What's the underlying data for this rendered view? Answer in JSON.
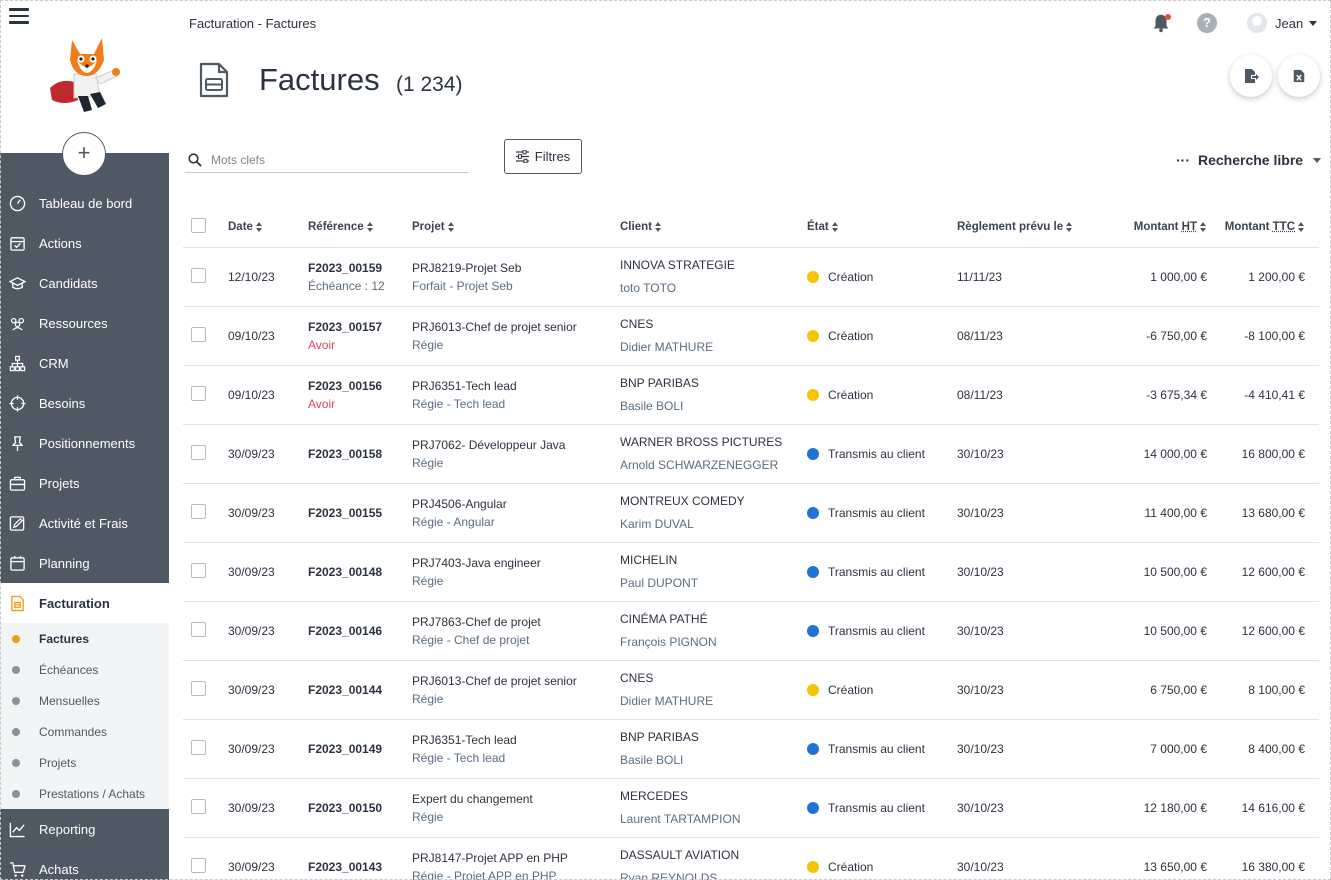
{
  "sidebar": {
    "add_label": "+",
    "nav": [
      {
        "label": "Tableau de bord",
        "icon": "gauge-icon"
      },
      {
        "label": "Actions",
        "icon": "calendar-check-icon"
      },
      {
        "label": "Candidats",
        "icon": "graduation-cap-icon"
      },
      {
        "label": "Ressources",
        "icon": "people-icon"
      },
      {
        "label": "CRM",
        "icon": "sitemap-icon"
      },
      {
        "label": "Besoins",
        "icon": "crosshair-icon"
      },
      {
        "label": "Positionnements",
        "icon": "pin-icon"
      },
      {
        "label": "Projets",
        "icon": "briefcase-icon"
      },
      {
        "label": "Activité et Frais",
        "icon": "edit-icon"
      },
      {
        "label": "Planning",
        "icon": "calendar-icon"
      },
      {
        "label": "Facturation",
        "icon": "invoice-icon"
      }
    ],
    "subnav": [
      {
        "label": "Factures"
      },
      {
        "label": "Échéances"
      },
      {
        "label": "Mensuelles"
      },
      {
        "label": "Commandes"
      },
      {
        "label": "Projets"
      },
      {
        "label": "Prestations / Achats"
      }
    ],
    "nav_after": [
      {
        "label": "Reporting",
        "icon": "chart-line-icon"
      },
      {
        "label": "Achats",
        "icon": "cart-icon"
      }
    ]
  },
  "header": {
    "breadcrumb": "Facturation - Factures",
    "user_name": "Jean",
    "help_label": "?"
  },
  "page": {
    "title": "Factures",
    "count": "(1 234)"
  },
  "search": {
    "placeholder": "Mots clefs",
    "filters_label": "Filtres",
    "free_search_dots": "···",
    "free_search_label": "Recherche libre"
  },
  "table": {
    "columns": {
      "date": "Date",
      "reference": "Référence",
      "project": "Projet",
      "client": "Client",
      "state": "État",
      "due": "Règlement prévu le",
      "ht_prefix": "Montant ",
      "ht_abbr": "HT",
      "ttc_prefix": "Montant ",
      "ttc_abbr": "TTC"
    },
    "rows": [
      {
        "date": "12/10/23",
        "ref": "F2023_00159",
        "ref_sub": "Échéance : 12",
        "ref_sub_red": false,
        "project": "PRJ8219-Projet Seb",
        "project_sub": "Forfait  - Projet Seb",
        "client": "INNOVA STRATEGIE",
        "contact": "toto TOTO",
        "state": "Création",
        "state_color": "#f5c400",
        "due": "11/11/23",
        "ht": "1 000,00 €",
        "ttc": "1 200,00 €"
      },
      {
        "date": "09/10/23",
        "ref": "F2023_00157",
        "ref_sub": "Avoir",
        "ref_sub_red": true,
        "project": "PRJ6013-Chef de projet senior",
        "project_sub": "Régie",
        "client": "CNES",
        "contact": "Didier MATHURE",
        "state": "Création",
        "state_color": "#f5c400",
        "due": "08/11/23",
        "ht": "-6 750,00 €",
        "ttc": "-8 100,00 €"
      },
      {
        "date": "09/10/23",
        "ref": "F2023_00156",
        "ref_sub": "Avoir",
        "ref_sub_red": true,
        "project": "PRJ6351-Tech lead",
        "project_sub": "Régie  - Tech lead",
        "client": "BNP PARIBAS",
        "contact": "Basile BOLI",
        "state": "Création",
        "state_color": "#f5c400",
        "due": "08/11/23",
        "ht": "-3 675,34 €",
        "ttc": "-4 410,41 €"
      },
      {
        "date": "30/09/23",
        "ref": "F2023_00158",
        "ref_sub": "",
        "ref_sub_red": false,
        "project": "PRJ7062- Développeur Java",
        "project_sub": "Régie",
        "client": "WARNER BROSS PICTURES",
        "contact": "Arnold SCHWARZENEGGER",
        "state": "Transmis au client",
        "state_color": "#1f73d6",
        "due": "30/10/23",
        "ht": "14 000,00 €",
        "ttc": "16 800,00 €"
      },
      {
        "date": "30/09/23",
        "ref": "F2023_00155",
        "ref_sub": "",
        "ref_sub_red": false,
        "project": "PRJ4506-Angular",
        "project_sub": "Régie  - Angular",
        "client": "MONTREUX COMEDY",
        "contact": "Karim DUVAL",
        "state": "Transmis au client",
        "state_color": "#1f73d6",
        "due": "30/10/23",
        "ht": "11 400,00 €",
        "ttc": "13 680,00 €"
      },
      {
        "date": "30/09/23",
        "ref": "F2023_00148",
        "ref_sub": "",
        "ref_sub_red": false,
        "project": "PRJ7403-Java engineer",
        "project_sub": "Régie",
        "client": "MICHELIN",
        "contact": "Paul DUPONT",
        "state": "Transmis au client",
        "state_color": "#1f73d6",
        "due": "30/10/23",
        "ht": "10 500,00 €",
        "ttc": "12 600,00 €"
      },
      {
        "date": "30/09/23",
        "ref": "F2023_00146",
        "ref_sub": "",
        "ref_sub_red": false,
        "project": "PRJ7863-Chef de projet",
        "project_sub": "Régie  - Chef de projet",
        "client": "CINÉMA PATHÉ",
        "contact": "François PIGNON",
        "state": "Transmis au client",
        "state_color": "#1f73d6",
        "due": "30/10/23",
        "ht": "10 500,00 €",
        "ttc": "12 600,00 €"
      },
      {
        "date": "30/09/23",
        "ref": "F2023_00144",
        "ref_sub": "",
        "ref_sub_red": false,
        "project": "PRJ6013-Chef de projet senior",
        "project_sub": "Régie",
        "client": "CNES",
        "contact": "Didier MATHURE",
        "state": "Création",
        "state_color": "#f5c400",
        "due": "30/10/23",
        "ht": "6 750,00 €",
        "ttc": "8 100,00 €"
      },
      {
        "date": "30/09/23",
        "ref": "F2023_00149",
        "ref_sub": "",
        "ref_sub_red": false,
        "project": "PRJ6351-Tech lead",
        "project_sub": "Régie  - Tech lead",
        "client": "BNP PARIBAS",
        "contact": "Basile BOLI",
        "state": "Transmis au client",
        "state_color": "#1f73d6",
        "due": "30/10/23",
        "ht": "7 000,00 €",
        "ttc": "8 400,00 €"
      },
      {
        "date": "30/09/23",
        "ref": "F2023_00150",
        "ref_sub": "",
        "ref_sub_red": false,
        "project": "Expert du changement",
        "project_sub": "Régie",
        "client": "MERCEDES",
        "contact": "Laurent TARTAMPION",
        "state": "Transmis au client",
        "state_color": "#1f73d6",
        "due": "30/10/23",
        "ht": "12 180,00 €",
        "ttc": "14 616,00 €"
      },
      {
        "date": "30/09/23",
        "ref": "F2023_00143",
        "ref_sub": "",
        "ref_sub_red": false,
        "project": "PRJ8147-Projet APP en PHP",
        "project_sub": "Régie  - Projet APP en PHP",
        "client": "DASSAULT AVIATION",
        "contact": "Ryan REYNOLDS",
        "state": "Création",
        "state_color": "#f5c400",
        "due": "30/10/23",
        "ht": "13 650,00 €",
        "ttc": "16 380,00 €"
      }
    ]
  },
  "colors": {
    "sidebar_bg": "#4f5963",
    "active_dot": "#f39c12",
    "state_creation": "#f5c400",
    "state_sent": "#1f73d6",
    "avoir_red": "#e0455b",
    "notification": "#e74c3c"
  }
}
